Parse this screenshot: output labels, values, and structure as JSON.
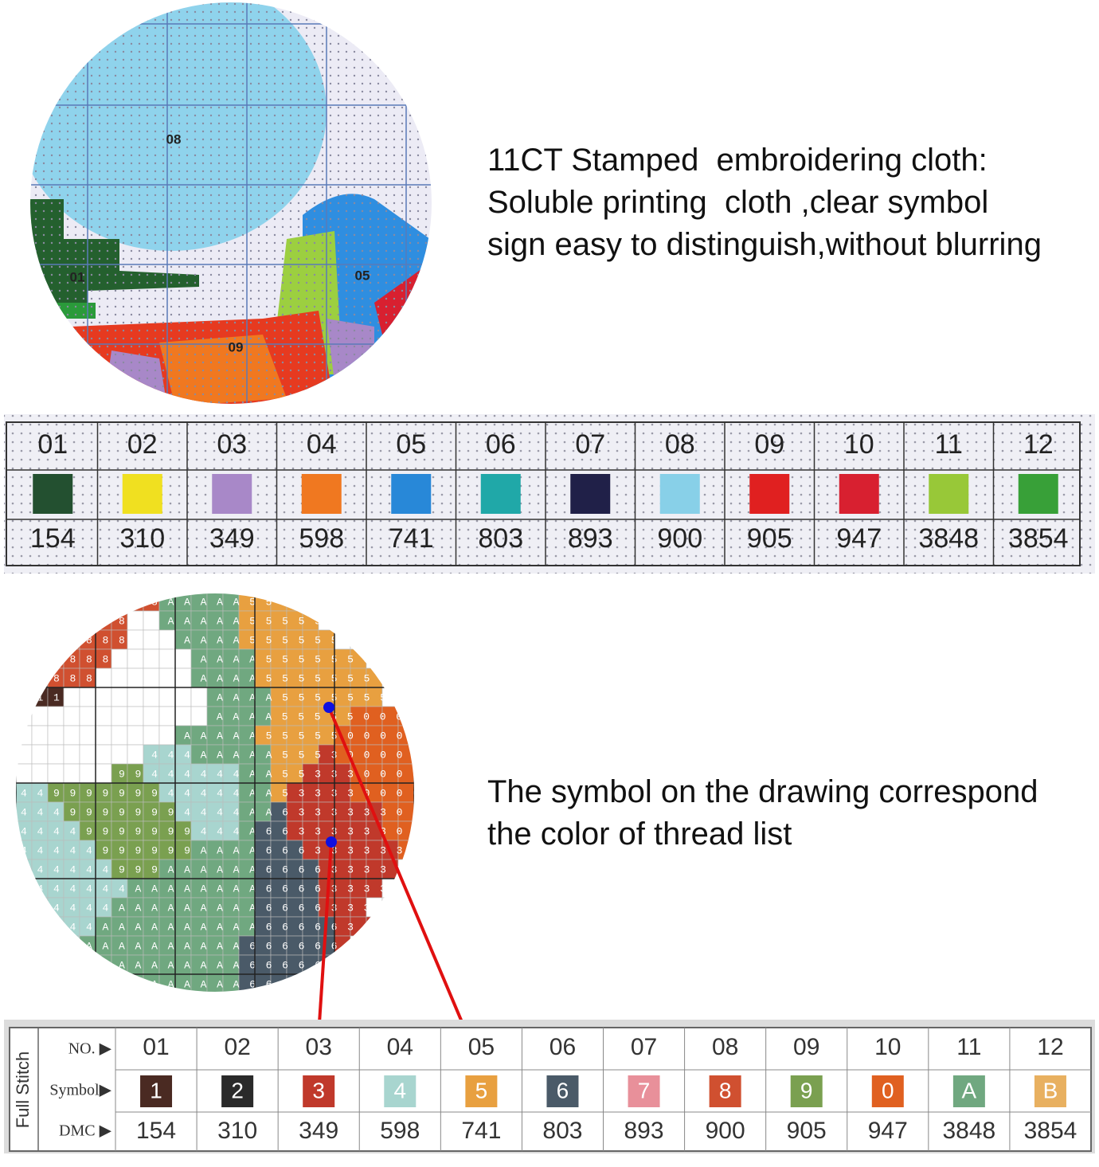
{
  "zoom_top": {
    "labels": [
      "08",
      "01",
      "05",
      "09"
    ]
  },
  "caption_top": [
    "11CT Stamped  embroidering cloth:",
    "Soluble printing  cloth ,clear symbol",
    "sign easy to distinguish,without blurring"
  ],
  "cloth_chart": {
    "numbers": [
      "01",
      "02",
      "03",
      "04",
      "05",
      "06",
      "07",
      "08",
      "09",
      "10",
      "11",
      "12"
    ],
    "colors": [
      "#235030",
      "#f0e020",
      "#a888c8",
      "#f07820",
      "#2888d8",
      "#20a8a8",
      "#202048",
      "#88d0e8",
      "#e02020",
      "#d82030",
      "#98c838",
      "#38a038"
    ],
    "dmc": [
      "154",
      "310",
      "349",
      "598",
      "741",
      "803",
      "893",
      "900",
      "905",
      "947",
      "3848",
      "3854"
    ]
  },
  "pattern": {
    "rows": [
      "     8888AAAAA5555       ",
      "    888  AAAAA55555      ",
      "   8888   AAAA555555     ",
      "  8888     AAAA5555555   ",
      " 1888      AAAA55555555  ",
      " 11         AAAA5555555  ",
      "            AAAA555550000 ",
      "          AAAAA5555500000",
      "        444AAAAA555300000",
      "      99444444AA553330000",
      "44999999944444AA533330000",
      "44499999994444AA633333300",
      "44449999999444A6633333300",
      "44444999999AAAA6663333330",
      "444444999AAAAAA666633333 ",
      "4444444AAAAAAAA66663333  ",
      "444444AAAAAAAAA6666333   ",
      "44444AAAAAAAAAA66666333  ",
      "0444AAAAAAAAAA6666663    ",
      "00AAAAAAAAAAAA666666     ",
      "  AAAAAAAAAAAA66666      "
    ]
  },
  "caption_bottom": [
    "The symbol on the drawing correspond",
    "the color of thread list"
  ],
  "symbol_chart": {
    "side_label": "Full Stitch",
    "row_labels": [
      "NO. ▶",
      "Symbol▶",
      "DMC ▶"
    ],
    "numbers": [
      "01",
      "02",
      "03",
      "04",
      "05",
      "06",
      "07",
      "08",
      "09",
      "10",
      "11",
      "12"
    ],
    "symbols": [
      "1",
      "2",
      "3",
      "4",
      "5",
      "6",
      "7",
      "8",
      "9",
      "0",
      "A",
      "B"
    ],
    "colors": [
      "#4a2a22",
      "#2a2a2a",
      "#c0392b",
      "#a8d5cf",
      "#e8a040",
      "#4a5a68",
      "#e8909a",
      "#d05030",
      "#7aa050",
      "#e06020",
      "#70a880",
      "#e8b060"
    ],
    "dmc": [
      "154",
      "310",
      "349",
      "598",
      "741",
      "803",
      "893",
      "900",
      "905",
      "947",
      "3848",
      "3854"
    ]
  }
}
